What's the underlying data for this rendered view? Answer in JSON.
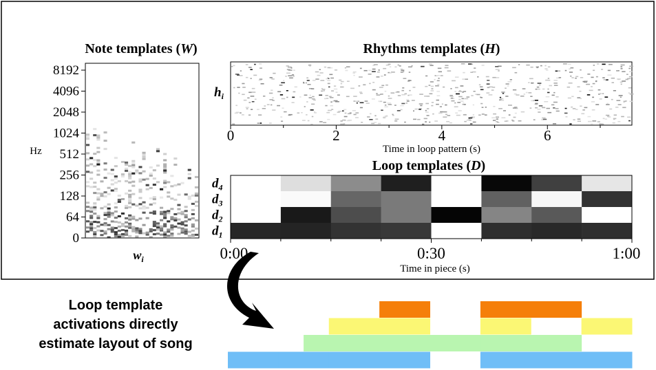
{
  "chart_data": [
    {
      "type": "heatmap",
      "title": "Note templates (W)",
      "title_text": "Note templates (",
      "title_var": "W",
      "title_close": ")",
      "ylabel": "Hz",
      "xlabel": "w",
      "xlabel_sub": "i",
      "yticks": [
        "8192",
        "4096",
        "2048",
        "1024",
        "512",
        "256",
        "128",
        "64",
        "0"
      ],
      "colormap": "greys"
    },
    {
      "type": "heatmap",
      "title": "Rhythms templates (H)",
      "title_text": "Rhythms templates (",
      "title_var": "H",
      "title_close": ")",
      "ylabel": "h",
      "ylabel_sub": "i",
      "xlabel": "Time in loop pattern (s)",
      "xticks": [
        0,
        2,
        4,
        6
      ],
      "xlim": [
        0,
        7.6
      ],
      "colormap": "greys"
    },
    {
      "type": "heatmap",
      "title": "Loop templates (D)",
      "title_text": "Loop templates (",
      "title_var": "D",
      "title_close": ")",
      "xlabel": "Time in piece (s)",
      "xticks": [
        "0:00",
        "0:30",
        "1:00"
      ],
      "rows": [
        {
          "label": "d",
          "sub": "4",
          "values": [
            0.0,
            0.13,
            0.45,
            0.88,
            0.0,
            0.97,
            0.75,
            0.1
          ]
        },
        {
          "label": "d",
          "sub": "3",
          "values": [
            0.0,
            0.02,
            0.6,
            0.52,
            0.0,
            0.62,
            0.03,
            0.8
          ]
        },
        {
          "label": "d",
          "sub": "2",
          "values": [
            0.0,
            0.9,
            0.7,
            0.52,
            0.98,
            0.48,
            0.65,
            0.0
          ]
        },
        {
          "label": "d",
          "sub": "1",
          "values": [
            0.85,
            0.86,
            0.8,
            0.78,
            0.0,
            0.82,
            0.84,
            0.82
          ]
        }
      ],
      "colormap": "greys"
    }
  ],
  "annotation": {
    "lines": [
      "Loop template",
      "activations directly",
      "estimate layout of song"
    ]
  },
  "layout_bars": {
    "segments": 8,
    "rows": [
      {
        "name": "orange",
        "color": "#f57f0a",
        "active": [
          0,
          0,
          0,
          1,
          0,
          1,
          1,
          0
        ]
      },
      {
        "name": "yellow",
        "color": "#fbf774",
        "active": [
          0,
          0,
          1,
          1,
          0,
          1,
          0,
          1
        ]
      },
      {
        "name": "green",
        "color": "#b9f5b0",
        "active": [
          0,
          0.5,
          1,
          1,
          1,
          1,
          1,
          0
        ]
      },
      {
        "name": "blue",
        "color": "#6fbef7",
        "active": [
          1,
          1,
          1,
          1,
          0,
          1,
          1,
          1
        ]
      }
    ]
  }
}
